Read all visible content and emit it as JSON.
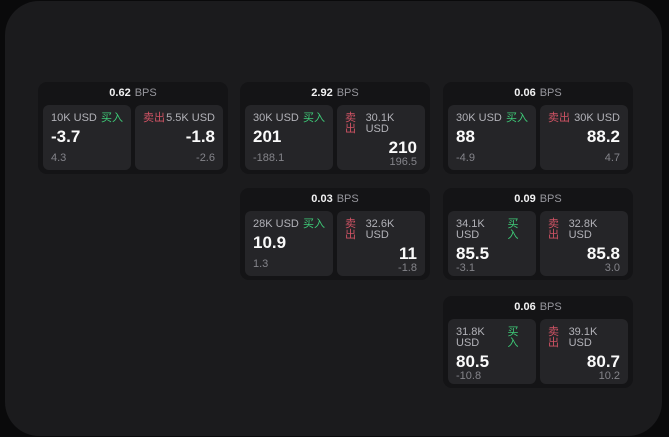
{
  "colors": {
    "page_background": "#0a0a0b",
    "panel_background": "#1b1b1d",
    "card_background": "#141416",
    "pane_background": "#252528",
    "buy_green": "#3ecb78",
    "sell_red": "#d05364",
    "value_white": "#fafafa",
    "label_gray": "#b2b2b8",
    "muted_gray": "#84848a"
  },
  "cards": [
    {
      "bps_value": "0.62",
      "bps_unit": "BPS",
      "buy": {
        "amount": "10K USD",
        "side_label": "买入",
        "value": "-3.7",
        "change": "4.3"
      },
      "sell": {
        "amount": "5.5K USD",
        "side_label": "卖出",
        "value": "-1.8",
        "change": "-2.6"
      }
    },
    {
      "bps_value": "2.92",
      "bps_unit": "BPS",
      "buy": {
        "amount": "30K USD",
        "side_label": "买入",
        "value": "201",
        "change": "-188.1"
      },
      "sell": {
        "amount": "30.1K USD",
        "side_label": "卖出",
        "value": "210",
        "change": "196.5"
      }
    },
    {
      "bps_value": "0.06",
      "bps_unit": "BPS",
      "buy": {
        "amount": "30K USD",
        "side_label": "买入",
        "value": "88",
        "change": "-4.9"
      },
      "sell": {
        "amount": "30K USD",
        "side_label": "卖出",
        "value": "88.2",
        "change": "4.7"
      }
    },
    {
      "bps_value": "0.03",
      "bps_unit": "BPS",
      "buy": {
        "amount": "28K USD",
        "side_label": "买入",
        "value": "10.9",
        "change": "1.3"
      },
      "sell": {
        "amount": "32.6K USD",
        "side_label": "卖出",
        "value": "11",
        "change": "-1.8"
      }
    },
    {
      "bps_value": "0.09",
      "bps_unit": "BPS",
      "buy": {
        "amount": "34.1K USD",
        "side_label": "买入",
        "value": "85.5",
        "change": "-3.1"
      },
      "sell": {
        "amount": "32.8K USD",
        "side_label": "卖出",
        "value": "85.8",
        "change": "3.0"
      }
    },
    {
      "bps_value": "0.06",
      "bps_unit": "BPS",
      "buy": {
        "amount": "31.8K USD",
        "side_label": "买入",
        "value": "80.5",
        "change": "-10.8"
      },
      "sell": {
        "amount": "39.1K USD",
        "side_label": "卖出",
        "value": "80.7",
        "change": "10.2"
      }
    }
  ]
}
